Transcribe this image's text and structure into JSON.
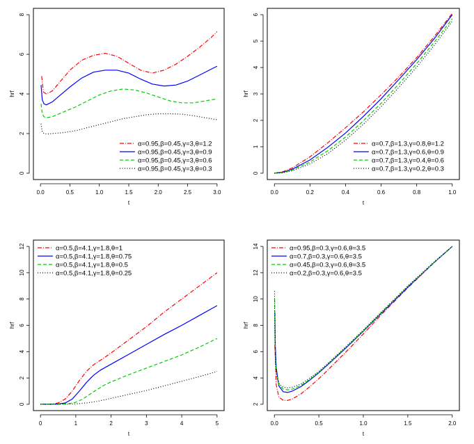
{
  "chart_data": [
    {
      "type": "line",
      "xlabel": "t",
      "ylabel": "hrf",
      "xlim": [
        0,
        3
      ],
      "ylim": [
        0,
        8
      ],
      "xticks": [
        "0.0",
        "0.5",
        "1.0",
        "1.5",
        "2.0",
        "2.5",
        "3.0"
      ],
      "yticks": [
        "0",
        "2",
        "4",
        "6",
        "8"
      ],
      "legend_position": "bottom-right",
      "series": [
        {
          "name": "α=0.95,β=0.45,γ=3,θ=1.2",
          "color": "#ff0000",
          "dash": "dotdash",
          "x": [
            0.02,
            0.05,
            0.1,
            0.2,
            0.3,
            0.5,
            0.7,
            0.9,
            1.1,
            1.3,
            1.5,
            1.7,
            1.9,
            2.1,
            2.3,
            2.5,
            2.7,
            2.9,
            3.0
          ],
          "y": [
            4.9,
            4.1,
            4.0,
            4.15,
            4.5,
            5.2,
            5.7,
            5.95,
            6.05,
            5.9,
            5.55,
            5.2,
            5.05,
            5.2,
            5.5,
            5.9,
            6.35,
            6.85,
            7.15
          ]
        },
        {
          "name": "α=0.95,β=0.45,γ=3,θ=0.9",
          "color": "#0000ff",
          "dash": "solid",
          "x": [
            0.01,
            0.03,
            0.06,
            0.1,
            0.2,
            0.3,
            0.5,
            0.7,
            0.9,
            1.1,
            1.3,
            1.5,
            1.7,
            1.9,
            2.1,
            2.3,
            2.5,
            2.7,
            2.9,
            3.0
          ],
          "y": [
            4.45,
            3.7,
            3.5,
            3.45,
            3.6,
            3.85,
            4.35,
            4.8,
            5.1,
            5.2,
            5.2,
            5.05,
            4.75,
            4.5,
            4.4,
            4.45,
            4.65,
            4.95,
            5.25,
            5.4
          ]
        },
        {
          "name": "α=0.95,β=0.45,γ=3,θ=0.6",
          "color": "#00cc00",
          "dash": "dash",
          "x": [
            0.01,
            0.03,
            0.06,
            0.1,
            0.2,
            0.4,
            0.6,
            0.8,
            1.0,
            1.2,
            1.4,
            1.6,
            1.8,
            2.0,
            2.2,
            2.4,
            2.6,
            2.8,
            3.0
          ],
          "y": [
            3.5,
            3.0,
            2.85,
            2.8,
            2.85,
            3.1,
            3.35,
            3.65,
            3.95,
            4.15,
            4.25,
            4.2,
            4.05,
            3.85,
            3.65,
            3.55,
            3.55,
            3.65,
            3.75
          ]
        },
        {
          "name": "α=0.95,β=0.45,γ=3,θ=0.3",
          "color": "#000000",
          "dash": "dot",
          "x": [
            0.01,
            0.03,
            0.06,
            0.1,
            0.2,
            0.4,
            0.6,
            0.8,
            1.0,
            1.2,
            1.4,
            1.6,
            1.8,
            2.0,
            2.2,
            2.4,
            2.6,
            2.8,
            3.0
          ],
          "y": [
            2.5,
            2.1,
            2.0,
            1.98,
            2.0,
            2.05,
            2.15,
            2.3,
            2.45,
            2.6,
            2.75,
            2.85,
            2.95,
            3.0,
            3.0,
            2.98,
            2.9,
            2.8,
            2.7
          ]
        }
      ]
    },
    {
      "type": "line",
      "xlabel": "t",
      "ylabel": "hrf",
      "xlim": [
        0,
        1
      ],
      "ylim": [
        0,
        6
      ],
      "xticks": [
        "0.0",
        "0.2",
        "0.4",
        "0.6",
        "0.8",
        "1.0"
      ],
      "yticks": [
        "0",
        "1",
        "2",
        "3",
        "4",
        "5",
        "6"
      ],
      "legend_position": "bottom-right",
      "series": [
        {
          "name": "α=0.7,β=1.3,γ=0.8,θ=1.2",
          "color": "#ff0000",
          "dash": "dotdash",
          "x": [
            0.0,
            0.05,
            0.1,
            0.2,
            0.3,
            0.4,
            0.5,
            0.6,
            0.7,
            0.8,
            0.9,
            1.0
          ],
          "y": [
            0.0,
            0.06,
            0.2,
            0.62,
            1.15,
            1.72,
            2.32,
            2.97,
            3.65,
            4.38,
            5.18,
            6.05
          ]
        },
        {
          "name": "α=0.7,β=1.3,γ=0.6,θ=0.9",
          "color": "#0000ff",
          "dash": "solid",
          "x": [
            0.0,
            0.05,
            0.1,
            0.2,
            0.3,
            0.4,
            0.5,
            0.6,
            0.7,
            0.8,
            0.9,
            1.0
          ],
          "y": [
            0.0,
            0.04,
            0.15,
            0.5,
            0.98,
            1.52,
            2.15,
            2.82,
            3.55,
            4.3,
            5.1,
            6.0
          ]
        },
        {
          "name": "α=0.7,β=1.3,γ=0.4,θ=0.6",
          "color": "#00cc00",
          "dash": "dash",
          "x": [
            0.0,
            0.05,
            0.1,
            0.2,
            0.3,
            0.4,
            0.5,
            0.6,
            0.7,
            0.8,
            0.9,
            1.0
          ],
          "y": [
            0.0,
            0.03,
            0.12,
            0.42,
            0.85,
            1.37,
            1.98,
            2.65,
            3.38,
            4.15,
            4.97,
            5.85
          ]
        },
        {
          "name": "α=0.7,β=1.3,γ=0.2,θ=0.3",
          "color": "#000000",
          "dash": "dot",
          "x": [
            0.0,
            0.05,
            0.1,
            0.2,
            0.3,
            0.4,
            0.5,
            0.6,
            0.7,
            0.8,
            0.9,
            1.0
          ],
          "y": [
            0.0,
            0.02,
            0.09,
            0.35,
            0.74,
            1.25,
            1.85,
            2.52,
            3.25,
            4.02,
            4.85,
            5.75
          ]
        }
      ]
    },
    {
      "type": "line",
      "xlabel": "t",
      "ylabel": "hrf",
      "xlim": [
        0,
        5
      ],
      "ylim": [
        0,
        12
      ],
      "xticks": [
        "0",
        "1",
        "2",
        "3",
        "4",
        "5"
      ],
      "yticks": [
        "0",
        "2",
        "4",
        "6",
        "8",
        "10",
        "12"
      ],
      "legend_position": "top-left",
      "series": [
        {
          "name": "α=0.5,β=4.1,γ=1.8,θ=1",
          "color": "#ff0000",
          "dash": "dotdash",
          "x": [
            0.0,
            0.3,
            0.5,
            0.7,
            0.9,
            1.1,
            1.3,
            1.5,
            1.7,
            2.0,
            2.5,
            3.0,
            3.5,
            4.0,
            4.5,
            5.0
          ],
          "y": [
            0.0,
            0.01,
            0.1,
            0.4,
            1.0,
            1.8,
            2.5,
            3.0,
            3.35,
            3.9,
            4.9,
            5.9,
            7.0,
            8.0,
            9.0,
            10.0
          ]
        },
        {
          "name": "α=0.5,β=4.1,γ=1.8,θ=0.75",
          "color": "#0000ff",
          "dash": "solid",
          "x": [
            0.0,
            0.3,
            0.5,
            0.7,
            0.9,
            1.1,
            1.3,
            1.5,
            1.7,
            2.0,
            2.5,
            3.0,
            3.5,
            4.0,
            4.5,
            5.0
          ],
          "y": [
            0.0,
            0.0,
            0.02,
            0.1,
            0.4,
            1.0,
            1.65,
            2.2,
            2.6,
            3.05,
            3.8,
            4.55,
            5.3,
            6.0,
            6.75,
            7.5
          ]
        },
        {
          "name": "α=0.5,β=4.1,γ=1.8,θ=0.5",
          "color": "#00cc00",
          "dash": "dash",
          "x": [
            0.0,
            0.5,
            0.8,
            1.0,
            1.2,
            1.5,
            1.8,
            2.0,
            2.5,
            3.0,
            3.5,
            4.0,
            4.5,
            5.0
          ],
          "y": [
            0.0,
            0.0,
            0.05,
            0.15,
            0.4,
            0.95,
            1.45,
            1.7,
            2.25,
            2.75,
            3.25,
            3.75,
            4.35,
            5.0
          ]
        },
        {
          "name": "α=0.5,β=4.1,γ=1.8,θ=0.25",
          "color": "#000000",
          "dash": "dot",
          "x": [
            0.0,
            0.5,
            1.0,
            1.3,
            1.6,
            2.0,
            2.5,
            3.0,
            3.5,
            4.0,
            4.5,
            5.0
          ],
          "y": [
            0.0,
            0.0,
            0.03,
            0.1,
            0.22,
            0.45,
            0.75,
            1.05,
            1.4,
            1.75,
            2.1,
            2.5
          ]
        }
      ]
    },
    {
      "type": "line",
      "xlabel": "t",
      "ylabel": "hrf",
      "xlim": [
        0,
        2
      ],
      "ylim": [
        2,
        14
      ],
      "xticks": [
        "0.0",
        "0.5",
        "1.0",
        "1.5",
        "2.0"
      ],
      "yticks": [
        "2",
        "4",
        "6",
        "8",
        "10",
        "12",
        "14"
      ],
      "legend_position": "top-left",
      "series": [
        {
          "name": "α=0.95,β=0.3,γ=0.6,θ=3.5",
          "color": "#ff0000",
          "dash": "dotdash",
          "x": [
            0.005,
            0.02,
            0.05,
            0.1,
            0.15,
            0.2,
            0.3,
            0.4,
            0.5,
            0.6,
            0.8,
            1.0,
            1.2,
            1.5,
            1.8,
            2.0
          ],
          "y": [
            6.5,
            3.5,
            2.55,
            2.3,
            2.3,
            2.4,
            2.8,
            3.35,
            3.95,
            4.6,
            5.95,
            7.35,
            8.8,
            10.85,
            12.8,
            14.0
          ]
        },
        {
          "name": "α=0.7,β=0.3,γ=0.6,θ=3.5",
          "color": "#0000ff",
          "dash": "solid",
          "x": [
            0.005,
            0.01,
            0.02,
            0.05,
            0.1,
            0.15,
            0.2,
            0.3,
            0.4,
            0.5,
            0.6,
            0.8,
            1.0,
            1.2,
            1.5,
            1.8,
            2.0
          ],
          "y": [
            9.0,
            6.5,
            4.8,
            3.4,
            2.95,
            2.9,
            3.0,
            3.35,
            3.85,
            4.4,
            5.0,
            6.25,
            7.55,
            8.9,
            10.9,
            12.8,
            14.0
          ]
        },
        {
          "name": "α=0.45,β=0.3,γ=0.6,θ=3.5",
          "color": "#00cc00",
          "dash": "dash",
          "x": [
            0.003,
            0.006,
            0.01,
            0.02,
            0.05,
            0.1,
            0.15,
            0.2,
            0.3,
            0.4,
            0.5,
            0.6,
            0.8,
            1.0,
            1.2,
            1.5,
            1.8,
            2.0
          ],
          "y": [
            10.0,
            7.5,
            5.8,
            4.5,
            3.5,
            3.15,
            3.1,
            3.15,
            3.45,
            3.9,
            4.45,
            5.05,
            6.3,
            7.6,
            8.95,
            10.95,
            12.8,
            14.0
          ]
        },
        {
          "name": "α=0.2,β=0.3,γ=0.6,θ=3.5",
          "color": "#000000",
          "dash": "dot",
          "x": [
            0.002,
            0.004,
            0.008,
            0.015,
            0.03,
            0.06,
            0.1,
            0.15,
            0.2,
            0.3,
            0.4,
            0.5,
            0.6,
            0.8,
            1.0,
            1.2,
            1.5,
            1.8,
            2.0
          ],
          "y": [
            10.6,
            8.0,
            6.2,
            4.9,
            4.0,
            3.5,
            3.3,
            3.25,
            3.3,
            3.55,
            4.0,
            4.5,
            5.1,
            6.35,
            7.65,
            9.0,
            11.0,
            12.85,
            14.0
          ]
        }
      ]
    }
  ]
}
